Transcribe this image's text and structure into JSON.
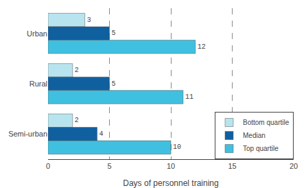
{
  "chart_data": {
    "type": "bar",
    "orientation": "horizontal",
    "categories": [
      "Urban",
      "Rural",
      "Semi-urban"
    ],
    "series": [
      {
        "name": "Bottom quartile",
        "color": "#b8e4f0",
        "values": [
          3,
          2,
          2
        ]
      },
      {
        "name": "Median",
        "color": "#1060a0",
        "values": [
          5,
          5,
          4
        ]
      },
      {
        "name": "Top quartile",
        "color": "#40c0e0",
        "values": [
          12,
          11,
          10
        ]
      }
    ],
    "xlabel": "Days of personnel training",
    "xlim": [
      0,
      20
    ],
    "xticks": [
      0,
      5,
      10,
      15,
      20
    ],
    "grid": true,
    "legend": "lower right",
    "data_labels": true
  }
}
